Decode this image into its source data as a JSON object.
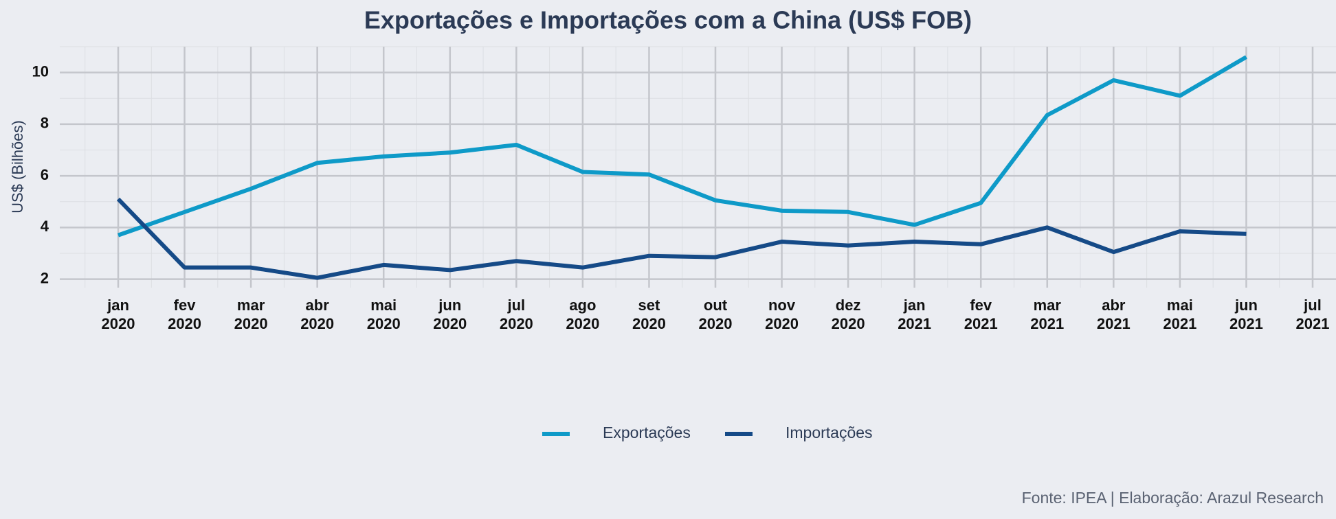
{
  "chart_data": {
    "type": "line",
    "title": "Exportações e Importações com a China (US$ FOB)",
    "ylabel": "US$ (Bilhões)",
    "source": "Fonte: IPEA | Elaboração: Arazul Research",
    "categories": [
      "jan 2020",
      "fev 2020",
      "mar 2020",
      "abr 2020",
      "mai 2020",
      "jun 2020",
      "jul 2020",
      "ago 2020",
      "set 2020",
      "out 2020",
      "nov 2020",
      "dez 2020",
      "jan 2021",
      "fev 2021",
      "mar 2021",
      "abr 2021",
      "mai 2021",
      "jun 2021",
      "jul 2021"
    ],
    "series": [
      {
        "name": "Exportações",
        "color": "#0e9ac8",
        "values": [
          3.7,
          4.6,
          5.5,
          6.5,
          6.75,
          6.9,
          7.2,
          6.15,
          6.05,
          5.05,
          4.65,
          4.6,
          4.1,
          4.95,
          8.35,
          9.7,
          9.1,
          10.6,
          null
        ]
      },
      {
        "name": "Importações",
        "color": "#154a87",
        "values": [
          5.1,
          2.45,
          2.45,
          2.05,
          2.55,
          2.35,
          2.7,
          2.45,
          2.9,
          2.85,
          3.45,
          3.3,
          3.45,
          3.35,
          4.0,
          3.05,
          3.85,
          3.75,
          null
        ]
      }
    ],
    "ylim": [
      1.67,
      11
    ],
    "yticks": [
      2,
      4,
      6,
      8,
      10
    ],
    "grid": true,
    "legend": "bottom"
  }
}
